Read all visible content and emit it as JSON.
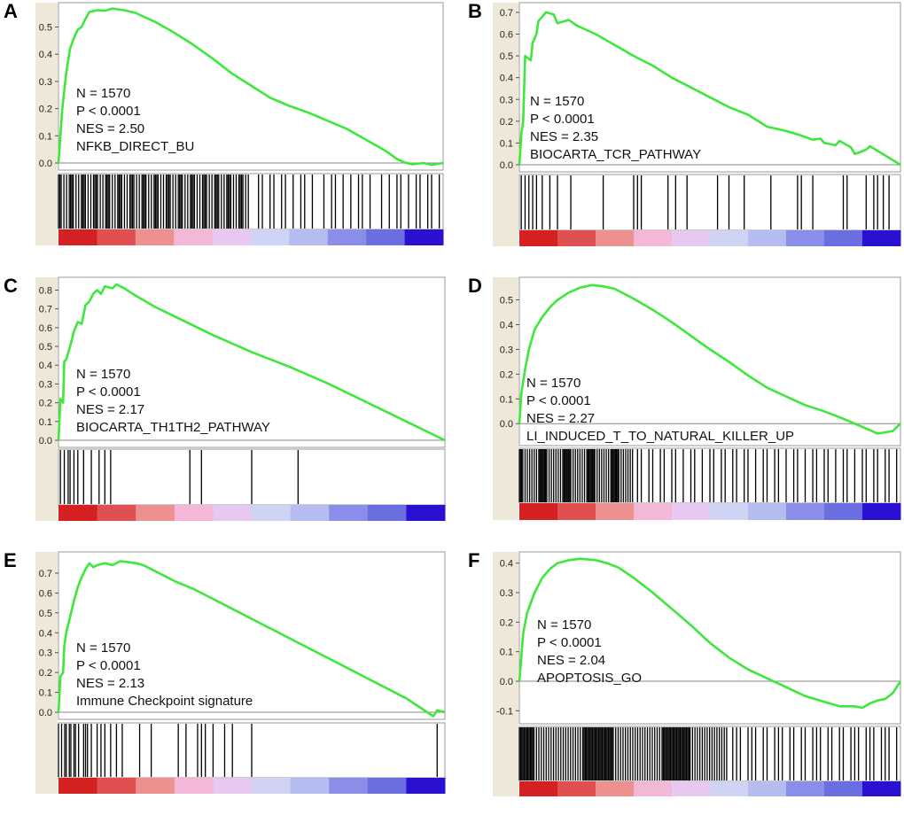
{
  "colors": {
    "curve": "#3ee73b",
    "barcode": "#000000",
    "sidebar": "#ede8d8",
    "frame": "#9a9a9a",
    "axis_text": "#222222"
  },
  "chart_data": [
    {
      "id": "A",
      "label": "A",
      "type": "line",
      "subtype": "gsea-enrichment-plot",
      "stats": {
        "n": "N = 1570",
        "p": "P < 0.0001",
        "nes": "NES = 2.50",
        "name": "NFKB_DIRECT_BU"
      },
      "ylim": [
        0,
        0.57
      ],
      "yticks": [
        0.0,
        0.1,
        0.2,
        0.3,
        0.4,
        0.5
      ],
      "ytick_labels": [
        "0.0",
        "0.1",
        "0.2",
        "0.3",
        "0.4",
        "0.5"
      ],
      "xlim": [
        0,
        1
      ],
      "curve": [
        [
          0,
          0
        ],
        [
          0.01,
          0.2
        ],
        [
          0.02,
          0.33
        ],
        [
          0.03,
          0.42
        ],
        [
          0.04,
          0.46
        ],
        [
          0.05,
          0.49
        ],
        [
          0.06,
          0.5
        ],
        [
          0.07,
          0.53
        ],
        [
          0.08,
          0.555
        ],
        [
          0.1,
          0.562
        ],
        [
          0.12,
          0.56
        ],
        [
          0.14,
          0.568
        ],
        [
          0.17,
          0.562
        ],
        [
          0.2,
          0.552
        ],
        [
          0.25,
          0.52
        ],
        [
          0.3,
          0.48
        ],
        [
          0.35,
          0.435
        ],
        [
          0.4,
          0.385
        ],
        [
          0.45,
          0.33
        ],
        [
          0.5,
          0.285
        ],
        [
          0.55,
          0.24
        ],
        [
          0.6,
          0.21
        ],
        [
          0.65,
          0.185
        ],
        [
          0.7,
          0.155
        ],
        [
          0.75,
          0.125
        ],
        [
          0.8,
          0.085
        ],
        [
          0.85,
          0.045
        ],
        [
          0.88,
          0.015
        ],
        [
          0.9,
          0.002
        ],
        [
          0.92,
          -0.005
        ],
        [
          0.95,
          0.0
        ],
        [
          0.97,
          -0.007
        ],
        [
          1.0,
          0.0
        ]
      ],
      "hits": {
        "dense_until": 0.5,
        "dense_step": 0.0035,
        "sparse": [
          0.52,
          0.53,
          0.55,
          0.56,
          0.58,
          0.59,
          0.61,
          0.63,
          0.64,
          0.66,
          0.69,
          0.71,
          0.72,
          0.74,
          0.76,
          0.78,
          0.79,
          0.81,
          0.84,
          0.86,
          0.88,
          0.89,
          0.91,
          0.93,
          0.94,
          0.96,
          0.97,
          0.99
        ]
      },
      "colorbar": [
        "#d42020",
        "#e05050",
        "#ec9090",
        "#f3b8d8",
        "#e6c8f0",
        "#d0d4f4",
        "#b4bcf0",
        "#8a8ee8",
        "#6a6ee0",
        "#2a10d0"
      ]
    },
    {
      "id": "B",
      "label": "B",
      "type": "line",
      "subtype": "gsea-enrichment-plot",
      "stats": {
        "n": "N = 1570",
        "p": "P < 0.0001",
        "nes": "NES = 2.35",
        "name": "BIOCARTA_TCR_PATHWAY"
      },
      "ylim": [
        0,
        0.72
      ],
      "yticks": [
        0.0,
        0.1,
        0.2,
        0.3,
        0.4,
        0.5,
        0.6,
        0.7
      ],
      "ytick_labels": [
        "0.0",
        "0.1",
        "0.2",
        "0.3",
        "0.4",
        "0.5",
        "0.6",
        "0.7"
      ],
      "xlim": [
        0,
        1
      ],
      "curve": [
        [
          0,
          0
        ],
        [
          0.005,
          0.14
        ],
        [
          0.01,
          0.2
        ],
        [
          0.015,
          0.5
        ],
        [
          0.03,
          0.48
        ],
        [
          0.035,
          0.56
        ],
        [
          0.045,
          0.6
        ],
        [
          0.05,
          0.66
        ],
        [
          0.07,
          0.7
        ],
        [
          0.09,
          0.69
        ],
        [
          0.1,
          0.65
        ],
        [
          0.13,
          0.665
        ],
        [
          0.15,
          0.64
        ],
        [
          0.2,
          0.6
        ],
        [
          0.25,
          0.55
        ],
        [
          0.3,
          0.5
        ],
        [
          0.35,
          0.455
        ],
        [
          0.4,
          0.4
        ],
        [
          0.45,
          0.355
        ],
        [
          0.5,
          0.31
        ],
        [
          0.55,
          0.265
        ],
        [
          0.6,
          0.23
        ],
        [
          0.65,
          0.175
        ],
        [
          0.7,
          0.155
        ],
        [
          0.73,
          0.14
        ],
        [
          0.77,
          0.115
        ],
        [
          0.79,
          0.12
        ],
        [
          0.8,
          0.1
        ],
        [
          0.83,
          0.09
        ],
        [
          0.84,
          0.11
        ],
        [
          0.87,
          0.08
        ],
        [
          0.88,
          0.05
        ],
        [
          0.89,
          0.055
        ],
        [
          0.91,
          0.07
        ],
        [
          0.92,
          0.085
        ],
        [
          0.93,
          0.075
        ],
        [
          1.0,
          0.0
        ]
      ],
      "hits": {
        "dense_until": 0,
        "dense_step": 0,
        "sparse": [
          0.005,
          0.015,
          0.025,
          0.035,
          0.045,
          0.06,
          0.08,
          0.1,
          0.135,
          0.22,
          0.3,
          0.31,
          0.32,
          0.39,
          0.41,
          0.44,
          0.52,
          0.55,
          0.59,
          0.66,
          0.73,
          0.74,
          0.77,
          0.85,
          0.86,
          0.91,
          0.93,
          0.94,
          0.955,
          0.97
        ]
      },
      "colorbar": [
        "#d42020",
        "#e05050",
        "#ec9090",
        "#f3b8d8",
        "#e6c8f0",
        "#d0d4f4",
        "#b4bcf0",
        "#8a8ee8",
        "#6a6ee0",
        "#2a10d0"
      ]
    },
    {
      "id": "C",
      "label": "C",
      "type": "line",
      "subtype": "gsea-enrichment-plot",
      "stats": {
        "n": "N = 1570",
        "p": "P < 0.0001",
        "nes": "NES = 2.17",
        "name": "BIOCARTA_TH1TH2_PATHWAY"
      },
      "ylim": [
        0,
        0.84
      ],
      "yticks": [
        0.0,
        0.1,
        0.2,
        0.3,
        0.4,
        0.5,
        0.6,
        0.7,
        0.8
      ],
      "ytick_labels": [
        "0.0",
        "0.1",
        "0.2",
        "0.3",
        "0.4",
        "0.5",
        "0.6",
        "0.7",
        "0.8"
      ],
      "xlim": [
        0,
        1
      ],
      "curve": [
        [
          0,
          0
        ],
        [
          0.005,
          0.22
        ],
        [
          0.012,
          0.2
        ],
        [
          0.015,
          0.42
        ],
        [
          0.02,
          0.43
        ],
        [
          0.03,
          0.5
        ],
        [
          0.04,
          0.58
        ],
        [
          0.05,
          0.63
        ],
        [
          0.06,
          0.62
        ],
        [
          0.07,
          0.72
        ],
        [
          0.08,
          0.74
        ],
        [
          0.09,
          0.78
        ],
        [
          0.1,
          0.8
        ],
        [
          0.11,
          0.78
        ],
        [
          0.12,
          0.82
        ],
        [
          0.14,
          0.81
        ],
        [
          0.15,
          0.83
        ],
        [
          0.17,
          0.81
        ],
        [
          0.2,
          0.77
        ],
        [
          0.25,
          0.71
        ],
        [
          0.3,
          0.66
        ],
        [
          0.35,
          0.61
        ],
        [
          0.4,
          0.56
        ],
        [
          0.5,
          0.47
        ],
        [
          0.6,
          0.39
        ],
        [
          0.7,
          0.3
        ],
        [
          0.8,
          0.2
        ],
        [
          0.9,
          0.1
        ],
        [
          1.0,
          0.0
        ]
      ],
      "hits": {
        "dense_until": 0,
        "dense_step": 0,
        "sparse": [
          0.005,
          0.015,
          0.025,
          0.03,
          0.04,
          0.05,
          0.065,
          0.085,
          0.105,
          0.12,
          0.135,
          0.34,
          0.37,
          0.5,
          0.62
        ]
      },
      "colorbar": [
        "#d42020",
        "#e05050",
        "#ec9090",
        "#f3b8d8",
        "#e6c8f0",
        "#d0d4f4",
        "#b4bcf0",
        "#8a8ee8",
        "#6a6ee0",
        "#2a10d0"
      ]
    },
    {
      "id": "D",
      "label": "D",
      "type": "line",
      "subtype": "gsea-enrichment-plot",
      "stats": {
        "n": "N = 1570",
        "p": "P < 0.0001",
        "nes": "NES = 2.27",
        "name": "LI_INDUCED_T_TO_NATURAL_KILLER_UP"
      },
      "ylim": [
        -0.06,
        0.57
      ],
      "yticks": [
        0.0,
        0.1,
        0.2,
        0.3,
        0.4,
        0.5
      ],
      "ytick_labels": [
        "0.0",
        "0.1",
        "0.2",
        "0.3",
        "0.4",
        "0.5"
      ],
      "xlim": [
        0,
        1
      ],
      "curve": [
        [
          0,
          0
        ],
        [
          0.005,
          0.12
        ],
        [
          0.015,
          0.22
        ],
        [
          0.025,
          0.3
        ],
        [
          0.04,
          0.38
        ],
        [
          0.06,
          0.43
        ],
        [
          0.08,
          0.47
        ],
        [
          0.1,
          0.5
        ],
        [
          0.13,
          0.53
        ],
        [
          0.16,
          0.55
        ],
        [
          0.19,
          0.56
        ],
        [
          0.22,
          0.555
        ],
        [
          0.25,
          0.545
        ],
        [
          0.3,
          0.505
        ],
        [
          0.35,
          0.46
        ],
        [
          0.4,
          0.41
        ],
        [
          0.45,
          0.355
        ],
        [
          0.5,
          0.3
        ],
        [
          0.55,
          0.25
        ],
        [
          0.6,
          0.195
        ],
        [
          0.65,
          0.145
        ],
        [
          0.7,
          0.11
        ],
        [
          0.75,
          0.075
        ],
        [
          0.8,
          0.05
        ],
        [
          0.85,
          0.02
        ],
        [
          0.88,
          0.0
        ],
        [
          0.91,
          -0.02
        ],
        [
          0.94,
          -0.04
        ],
        [
          0.96,
          -0.035
        ],
        [
          0.98,
          -0.03
        ],
        [
          1.0,
          0.0
        ]
      ],
      "hits": {
        "dense_until": 0.3,
        "dense_step": 0.003,
        "sparse": [
          0.31,
          0.32,
          0.34,
          0.35,
          0.37,
          0.38,
          0.4,
          0.41,
          0.43,
          0.45,
          0.46,
          0.48,
          0.5,
          0.51,
          0.53,
          0.54,
          0.56,
          0.57,
          0.59,
          0.6,
          0.62,
          0.64,
          0.65,
          0.67,
          0.68,
          0.7,
          0.72,
          0.73,
          0.75,
          0.77,
          0.78,
          0.8,
          0.81,
          0.83,
          0.85,
          0.86,
          0.88,
          0.9,
          0.91,
          0.93,
          0.94,
          0.96,
          0.97,
          0.99
        ]
      },
      "colorbar": [
        "#d42020",
        "#e05050",
        "#ec9090",
        "#f3b8d8",
        "#e6c8f0",
        "#d0d4f4",
        "#b4bcf0",
        "#8a8ee8",
        "#6a6ee0",
        "#2a10d0"
      ]
    },
    {
      "id": "E",
      "label": "E",
      "type": "line",
      "subtype": "gsea-enrichment-plot",
      "stats": {
        "n": "N = 1570",
        "p": "P < 0.0001",
        "nes": "NES = 2.13",
        "name": "Immune Checkpoint signature"
      },
      "ylim": [
        0,
        0.78
      ],
      "yticks": [
        0.0,
        0.1,
        0.2,
        0.3,
        0.4,
        0.5,
        0.6,
        0.7
      ],
      "ytick_labels": [
        "0.0",
        "0.1",
        "0.2",
        "0.3",
        "0.4",
        "0.5",
        "0.6",
        "0.7"
      ],
      "xlim": [
        0,
        1
      ],
      "curve": [
        [
          0,
          0
        ],
        [
          0.005,
          0.18
        ],
        [
          0.012,
          0.2
        ],
        [
          0.015,
          0.33
        ],
        [
          0.02,
          0.4
        ],
        [
          0.03,
          0.48
        ],
        [
          0.04,
          0.56
        ],
        [
          0.05,
          0.63
        ],
        [
          0.06,
          0.68
        ],
        [
          0.07,
          0.72
        ],
        [
          0.08,
          0.75
        ],
        [
          0.09,
          0.73
        ],
        [
          0.1,
          0.74
        ],
        [
          0.12,
          0.75
        ],
        [
          0.14,
          0.74
        ],
        [
          0.16,
          0.76
        ],
        [
          0.18,
          0.755
        ],
        [
          0.2,
          0.75
        ],
        [
          0.22,
          0.74
        ],
        [
          0.25,
          0.71
        ],
        [
          0.3,
          0.66
        ],
        [
          0.35,
          0.62
        ],
        [
          0.4,
          0.57
        ],
        [
          0.5,
          0.47
        ],
        [
          0.6,
          0.37
        ],
        [
          0.7,
          0.27
        ],
        [
          0.8,
          0.17
        ],
        [
          0.9,
          0.07
        ],
        [
          0.97,
          -0.02
        ],
        [
          0.98,
          0.01
        ],
        [
          1.0,
          0.0
        ]
      ],
      "hits": {
        "dense_until": 0.06,
        "dense_step": 0.004,
        "sparse": [
          0.065,
          0.07,
          0.075,
          0.085,
          0.1,
          0.11,
          0.12,
          0.135,
          0.15,
          0.165,
          0.21,
          0.24,
          0.31,
          0.33,
          0.36,
          0.37,
          0.38,
          0.4,
          0.43,
          0.45,
          0.5,
          0.98
        ]
      },
      "colorbar": [
        "#d42020",
        "#e05050",
        "#ec9090",
        "#f3b8d8",
        "#e6c8f0",
        "#d0d4f4",
        "#b4bcf0",
        "#8a8ee8",
        "#6a6ee0",
        "#2a10d0"
      ]
    },
    {
      "id": "F",
      "label": "F",
      "type": "line",
      "subtype": "gsea-enrichment-plot",
      "stats": {
        "n": "N = 1570",
        "p": "P < 0.0001",
        "nes": "NES = 2.04",
        "name": "APOPTOSIS_GO"
      },
      "ylim": [
        -0.12,
        0.42
      ],
      "yticks": [
        -0.1,
        0.0,
        0.1,
        0.2,
        0.3,
        0.4
      ],
      "ytick_labels": [
        "-0.1",
        "0.0",
        "0.1",
        "0.2",
        "0.3",
        "0.4"
      ],
      "xlim": [
        0,
        1
      ],
      "curve": [
        [
          0,
          0
        ],
        [
          0.005,
          0.08
        ],
        [
          0.01,
          0.16
        ],
        [
          0.02,
          0.23
        ],
        [
          0.04,
          0.3
        ],
        [
          0.06,
          0.35
        ],
        [
          0.08,
          0.38
        ],
        [
          0.1,
          0.4
        ],
        [
          0.13,
          0.41
        ],
        [
          0.16,
          0.415
        ],
        [
          0.2,
          0.41
        ],
        [
          0.23,
          0.4
        ],
        [
          0.26,
          0.385
        ],
        [
          0.3,
          0.35
        ],
        [
          0.35,
          0.3
        ],
        [
          0.4,
          0.245
        ],
        [
          0.45,
          0.19
        ],
        [
          0.5,
          0.13
        ],
        [
          0.55,
          0.08
        ],
        [
          0.6,
          0.04
        ],
        [
          0.65,
          0.01
        ],
        [
          0.7,
          -0.02
        ],
        [
          0.75,
          -0.05
        ],
        [
          0.8,
          -0.07
        ],
        [
          0.84,
          -0.085
        ],
        [
          0.88,
          -0.085
        ],
        [
          0.9,
          -0.09
        ],
        [
          0.92,
          -0.075
        ],
        [
          0.94,
          -0.065
        ],
        [
          0.96,
          -0.06
        ],
        [
          0.98,
          -0.04
        ],
        [
          1.0,
          0.0
        ]
      ],
      "hits": {
        "dense_until": 0.55,
        "dense_step": 0.0032,
        "sparse": [
          0.56,
          0.57,
          0.58,
          0.6,
          0.61,
          0.62,
          0.64,
          0.65,
          0.67,
          0.68,
          0.69,
          0.71,
          0.72,
          0.74,
          0.75,
          0.77,
          0.78,
          0.79,
          0.81,
          0.82,
          0.84,
          0.85,
          0.87,
          0.88,
          0.89,
          0.91,
          0.92,
          0.93,
          0.95,
          0.96,
          0.97,
          0.99
        ]
      },
      "colorbar": [
        "#d42020",
        "#e05050",
        "#ec9090",
        "#f3b8d8",
        "#e6c8f0",
        "#d0d4f4",
        "#b4bcf0",
        "#8a8ee8",
        "#6a6ee0",
        "#2a10d0"
      ]
    }
  ]
}
